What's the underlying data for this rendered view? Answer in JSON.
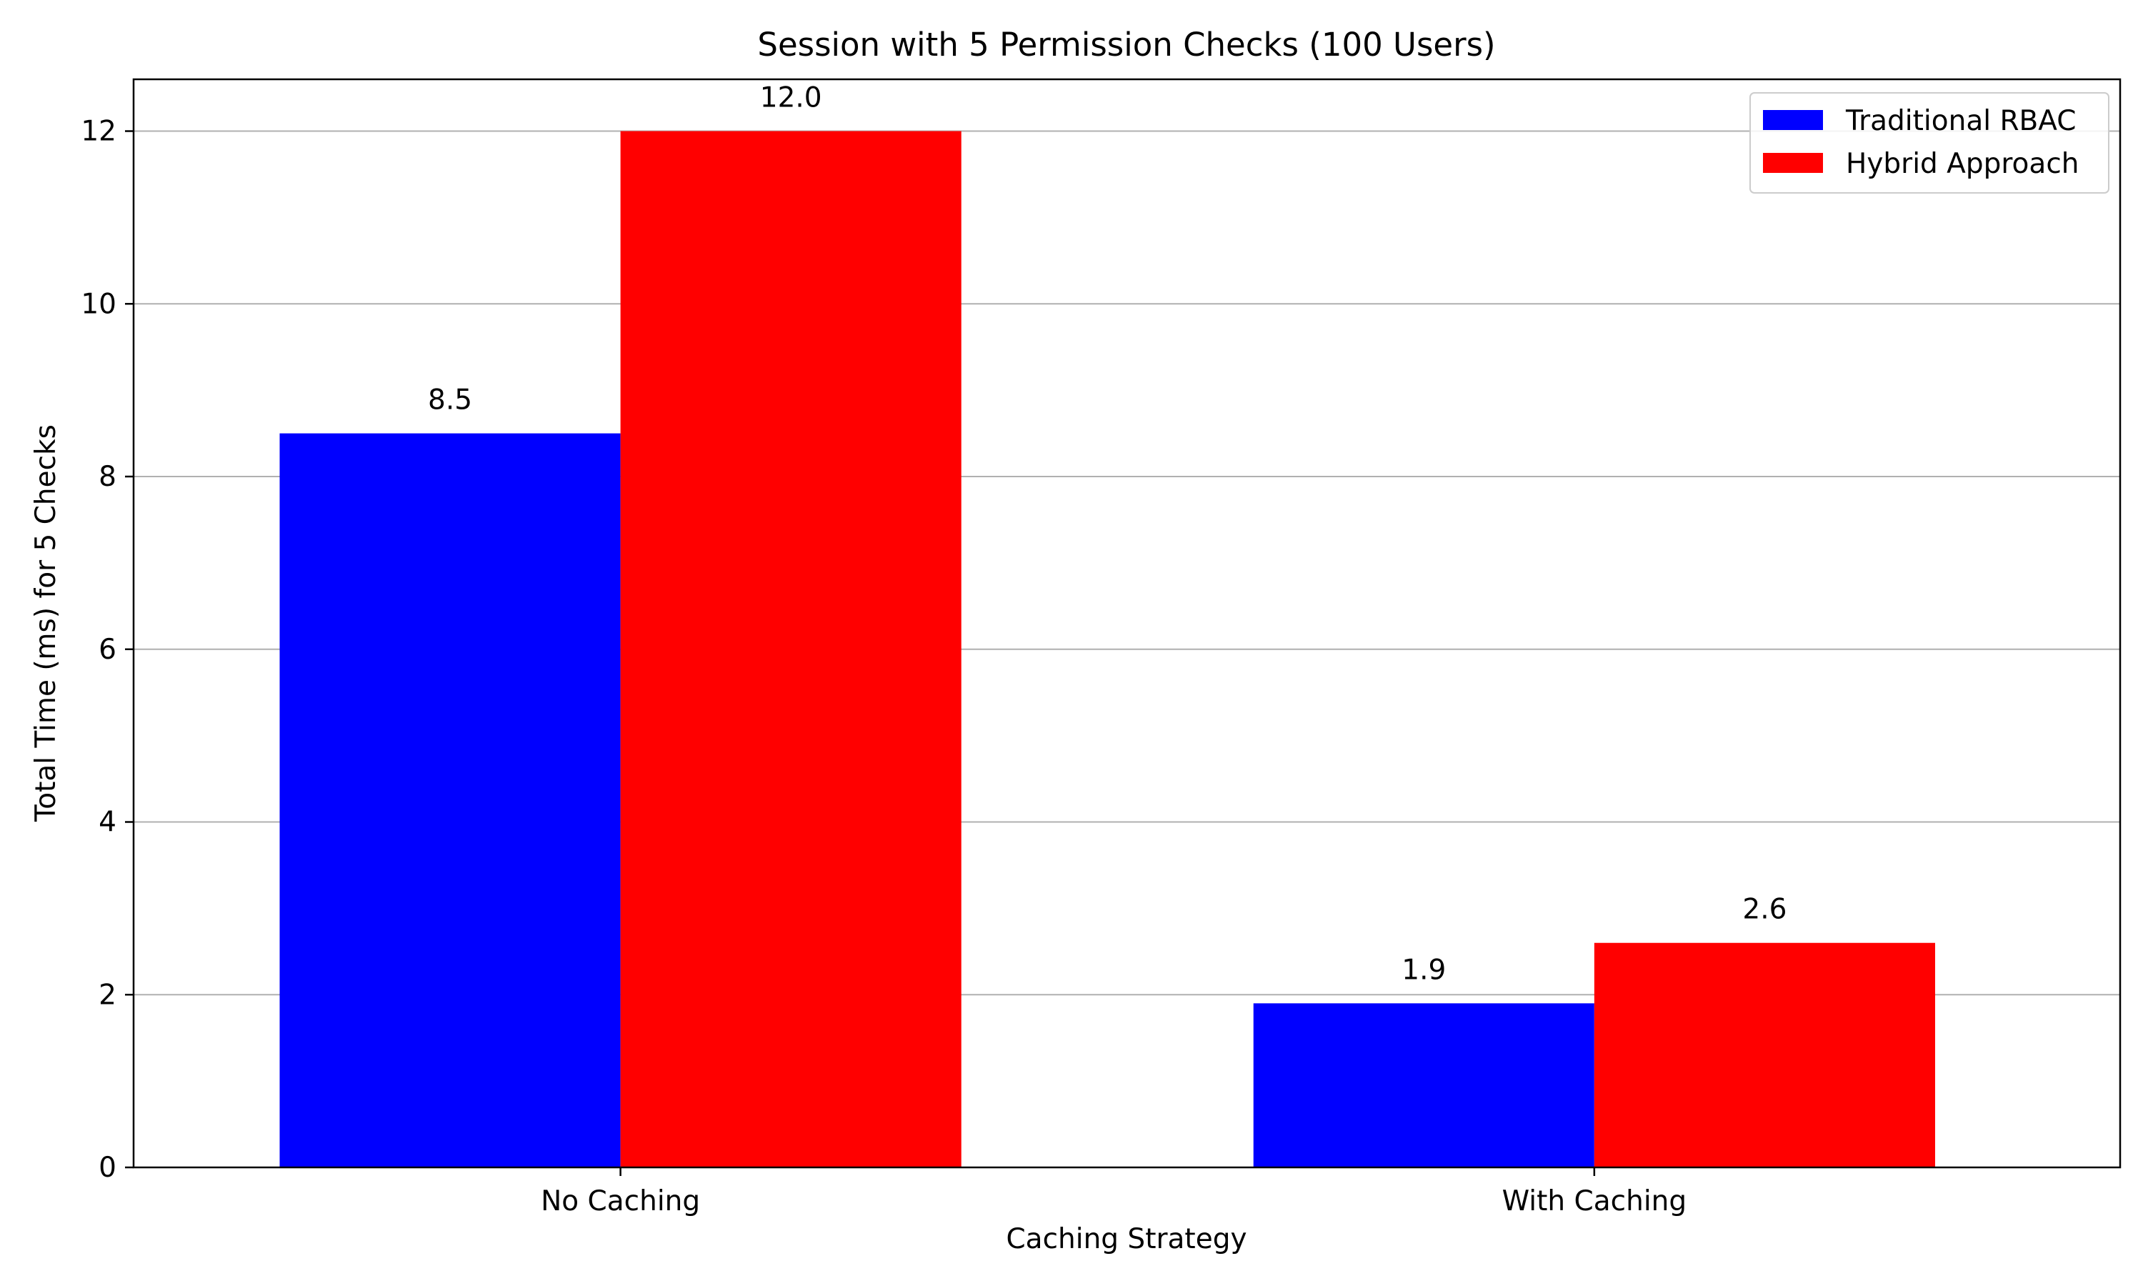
{
  "chart_data": {
    "type": "bar",
    "title": "Session with 5 Permission Checks (100 Users)",
    "xlabel": "Caching Strategy",
    "ylabel": "Total Time (ms) for 5 Checks",
    "categories": [
      "No Caching",
      "With Caching"
    ],
    "series": [
      {
        "name": "Traditional RBAC",
        "color": "#0000ff",
        "values": [
          8.5,
          1.9
        ],
        "labels": [
          "8.5",
          "1.9"
        ]
      },
      {
        "name": "Hybrid Approach",
        "color": "#ff0000",
        "values": [
          12.0,
          2.6
        ],
        "labels": [
          "12.0",
          "2.6"
        ]
      }
    ],
    "ylim": [
      0,
      12.6
    ],
    "yticks": [
      0,
      2,
      4,
      6,
      8,
      10,
      12
    ],
    "ytick_labels": [
      "0",
      "2",
      "4",
      "6",
      "8",
      "10",
      "12"
    ],
    "grid": "y",
    "legend_position": "top-right"
  }
}
